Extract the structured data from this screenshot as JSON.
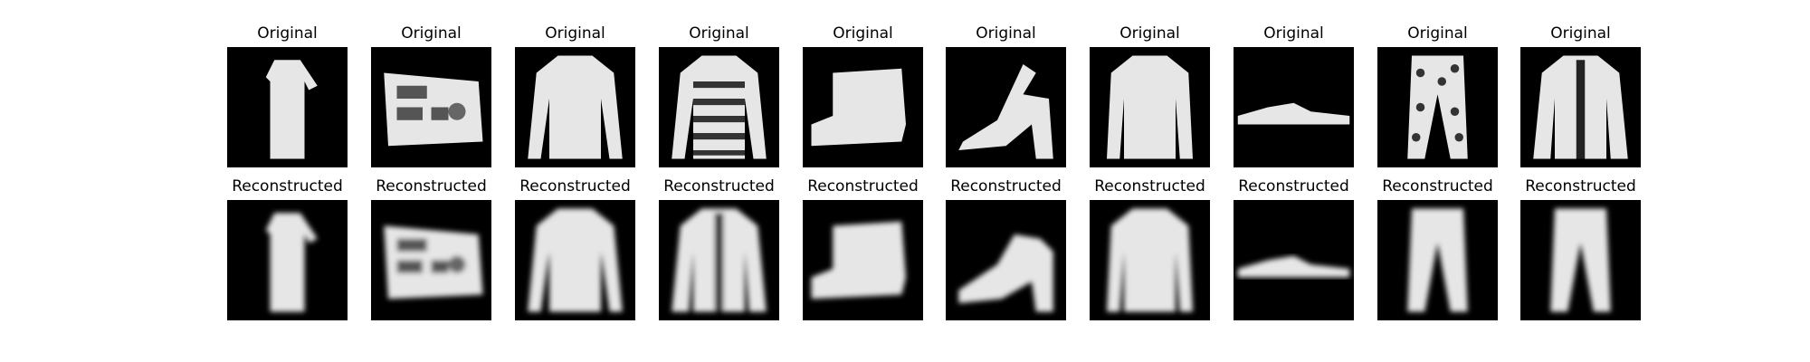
{
  "rows": [
    {
      "label": "Original",
      "items": [
        {
          "name": "dress"
        },
        {
          "name": "bag"
        },
        {
          "name": "sweater"
        },
        {
          "name": "patterned-coat"
        },
        {
          "name": "ankle-boot"
        },
        {
          "name": "sandal-heel"
        },
        {
          "name": "shirt"
        },
        {
          "name": "flip-flop"
        },
        {
          "name": "patterned-trousers"
        },
        {
          "name": "coat"
        }
      ]
    },
    {
      "label": "Reconstructed",
      "items": [
        {
          "name": "dress"
        },
        {
          "name": "bag"
        },
        {
          "name": "sweater"
        },
        {
          "name": "coat"
        },
        {
          "name": "ankle-boot"
        },
        {
          "name": "heel"
        },
        {
          "name": "shirt"
        },
        {
          "name": "flip-flop"
        },
        {
          "name": "trousers"
        },
        {
          "name": "trousers"
        }
      ]
    }
  ],
  "colors": {
    "background": "#000000",
    "foreground": "#e6e6e6"
  }
}
